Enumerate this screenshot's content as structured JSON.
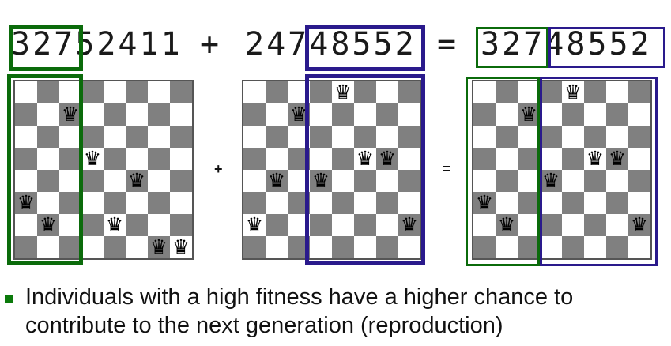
{
  "sequences": {
    "parent1": "32752411",
    "parent2": "24748552",
    "child": "32748552",
    "plus": "+",
    "equals": "="
  },
  "board_symbols": {
    "plus": "+",
    "equals": "="
  },
  "boards": [
    {
      "name": "parent1",
      "queens": [
        3,
        2,
        7,
        5,
        2,
        4,
        1,
        1
      ]
    },
    {
      "name": "parent2",
      "queens": [
        2,
        4,
        7,
        4,
        8,
        5,
        5,
        2
      ]
    },
    {
      "name": "child",
      "queens": [
        3,
        2,
        7,
        4,
        8,
        5,
        5,
        2
      ]
    }
  ],
  "colors": {
    "green": "#0b6b0b",
    "purple": "#2a1a8c"
  },
  "icon": "queen-icon",
  "bullet_text": "Individuals with a high fitness have a higher chance to contribute to the next generation (reproduction)"
}
